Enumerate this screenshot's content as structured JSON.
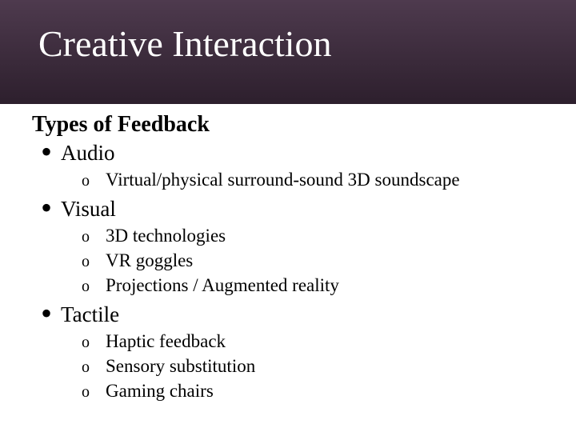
{
  "colors": {
    "header_gradient_top": "#4e3a4e",
    "header_gradient_bottom": "#2d1f2d",
    "title_color": "#ffffff",
    "body_text": "#000000",
    "background": "#ffffff"
  },
  "typography": {
    "title_fontsize": 46,
    "subtitle_fontsize": 28,
    "top_item_fontsize": 27,
    "sub_item_fontsize": 23,
    "font_family": "Georgia"
  },
  "slide": {
    "title": "Creative Interaction",
    "subtitle": "Types of Feedback",
    "items": [
      {
        "label": "Audio",
        "subitems": [
          "Virtual/physical surround-sound 3D soundscape"
        ]
      },
      {
        "label": "Visual",
        "subitems": [
          "3D technologies",
          "VR goggles",
          "Projections / Augmented reality"
        ]
      },
      {
        "label": "Tactile",
        "subitems": [
          "Haptic feedback",
          "Sensory substitution",
          "Gaming chairs"
        ]
      }
    ]
  }
}
